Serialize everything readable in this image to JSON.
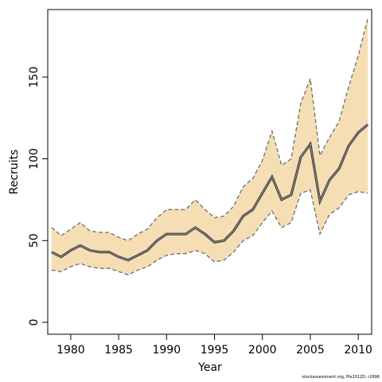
{
  "chart_data": {
    "type": "area",
    "xlabel": "Year",
    "ylabel": "Recruits",
    "xlim": [
      1977.6,
      2011.4
    ],
    "ylim": [
      0,
      185
    ],
    "x_ticks": [
      1980,
      1985,
      1990,
      1995,
      2000,
      2005,
      2010
    ],
    "y_ticks": [
      0,
      50,
      100,
      150
    ],
    "x": [
      1978,
      1979,
      1980,
      1981,
      1982,
      1983,
      1984,
      1985,
      1986,
      1987,
      1988,
      1989,
      1990,
      1991,
      1992,
      1993,
      1994,
      1995,
      1996,
      1997,
      1998,
      1999,
      2000,
      2001,
      2002,
      2003,
      2004,
      2005,
      2006,
      2007,
      2008,
      2009,
      2010,
      2011
    ],
    "series": [
      {
        "values": [
          43,
          40,
          44,
          47,
          44,
          43,
          43,
          40,
          38,
          41,
          44,
          50,
          54,
          54,
          54,
          58,
          54,
          49,
          50,
          56,
          65,
          69,
          79,
          89,
          75,
          78,
          101,
          109,
          74,
          87,
          94,
          108,
          116,
          121
        ]
      },
      {
        "values": [
          32,
          31,
          34,
          36,
          34,
          33,
          33,
          31,
          29,
          32,
          34,
          38,
          41,
          42,
          42,
          44,
          42,
          37,
          38,
          43,
          50,
          53,
          61,
          68,
          58,
          61,
          79,
          81,
          54,
          66,
          70,
          78,
          80,
          79
        ]
      },
      {
        "values": [
          58,
          53,
          57,
          61,
          56,
          55,
          55,
          52,
          50,
          54,
          57,
          64,
          69,
          69,
          69,
          75,
          69,
          64,
          65,
          71,
          83,
          88,
          99,
          117,
          96,
          100,
          134,
          149,
          102,
          113,
          123,
          144,
          163,
          186
        ]
      }
    ],
    "colors": {
      "band": "#f5deb3",
      "line": "#333333",
      "bound": "#6e6e6e"
    }
  },
  "footer": "stockassessment.org, Ple2012D, r2696"
}
